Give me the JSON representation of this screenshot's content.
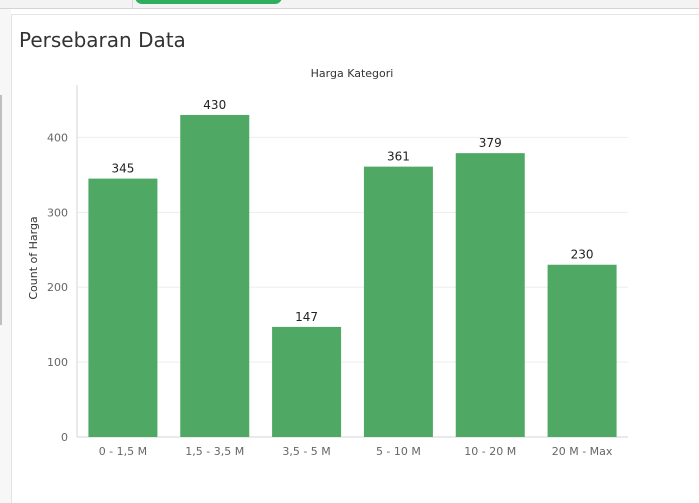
{
  "page": {
    "title": "Persebaran Data"
  },
  "chart_data": {
    "type": "bar",
    "title": "Harga Kategori",
    "xlabel": "",
    "ylabel": "Count of Harga",
    "categories": [
      "0 - 1,5 M",
      "1,5 - 3,5 M",
      "3,5 - 5 M",
      "5 - 10 M",
      "10 - 20 M",
      "20 M - Max"
    ],
    "values": [
      345,
      430,
      147,
      361,
      379,
      230
    ],
    "yticks": [
      0,
      100,
      200,
      300,
      400
    ],
    "ylim": [
      0,
      470
    ],
    "grid": true,
    "bar_color": "#4fa864",
    "grid_color": "#ededed",
    "axis_color": "#d6d6d6",
    "tick_label_color": "#666666",
    "value_label_color": "#222222"
  }
}
